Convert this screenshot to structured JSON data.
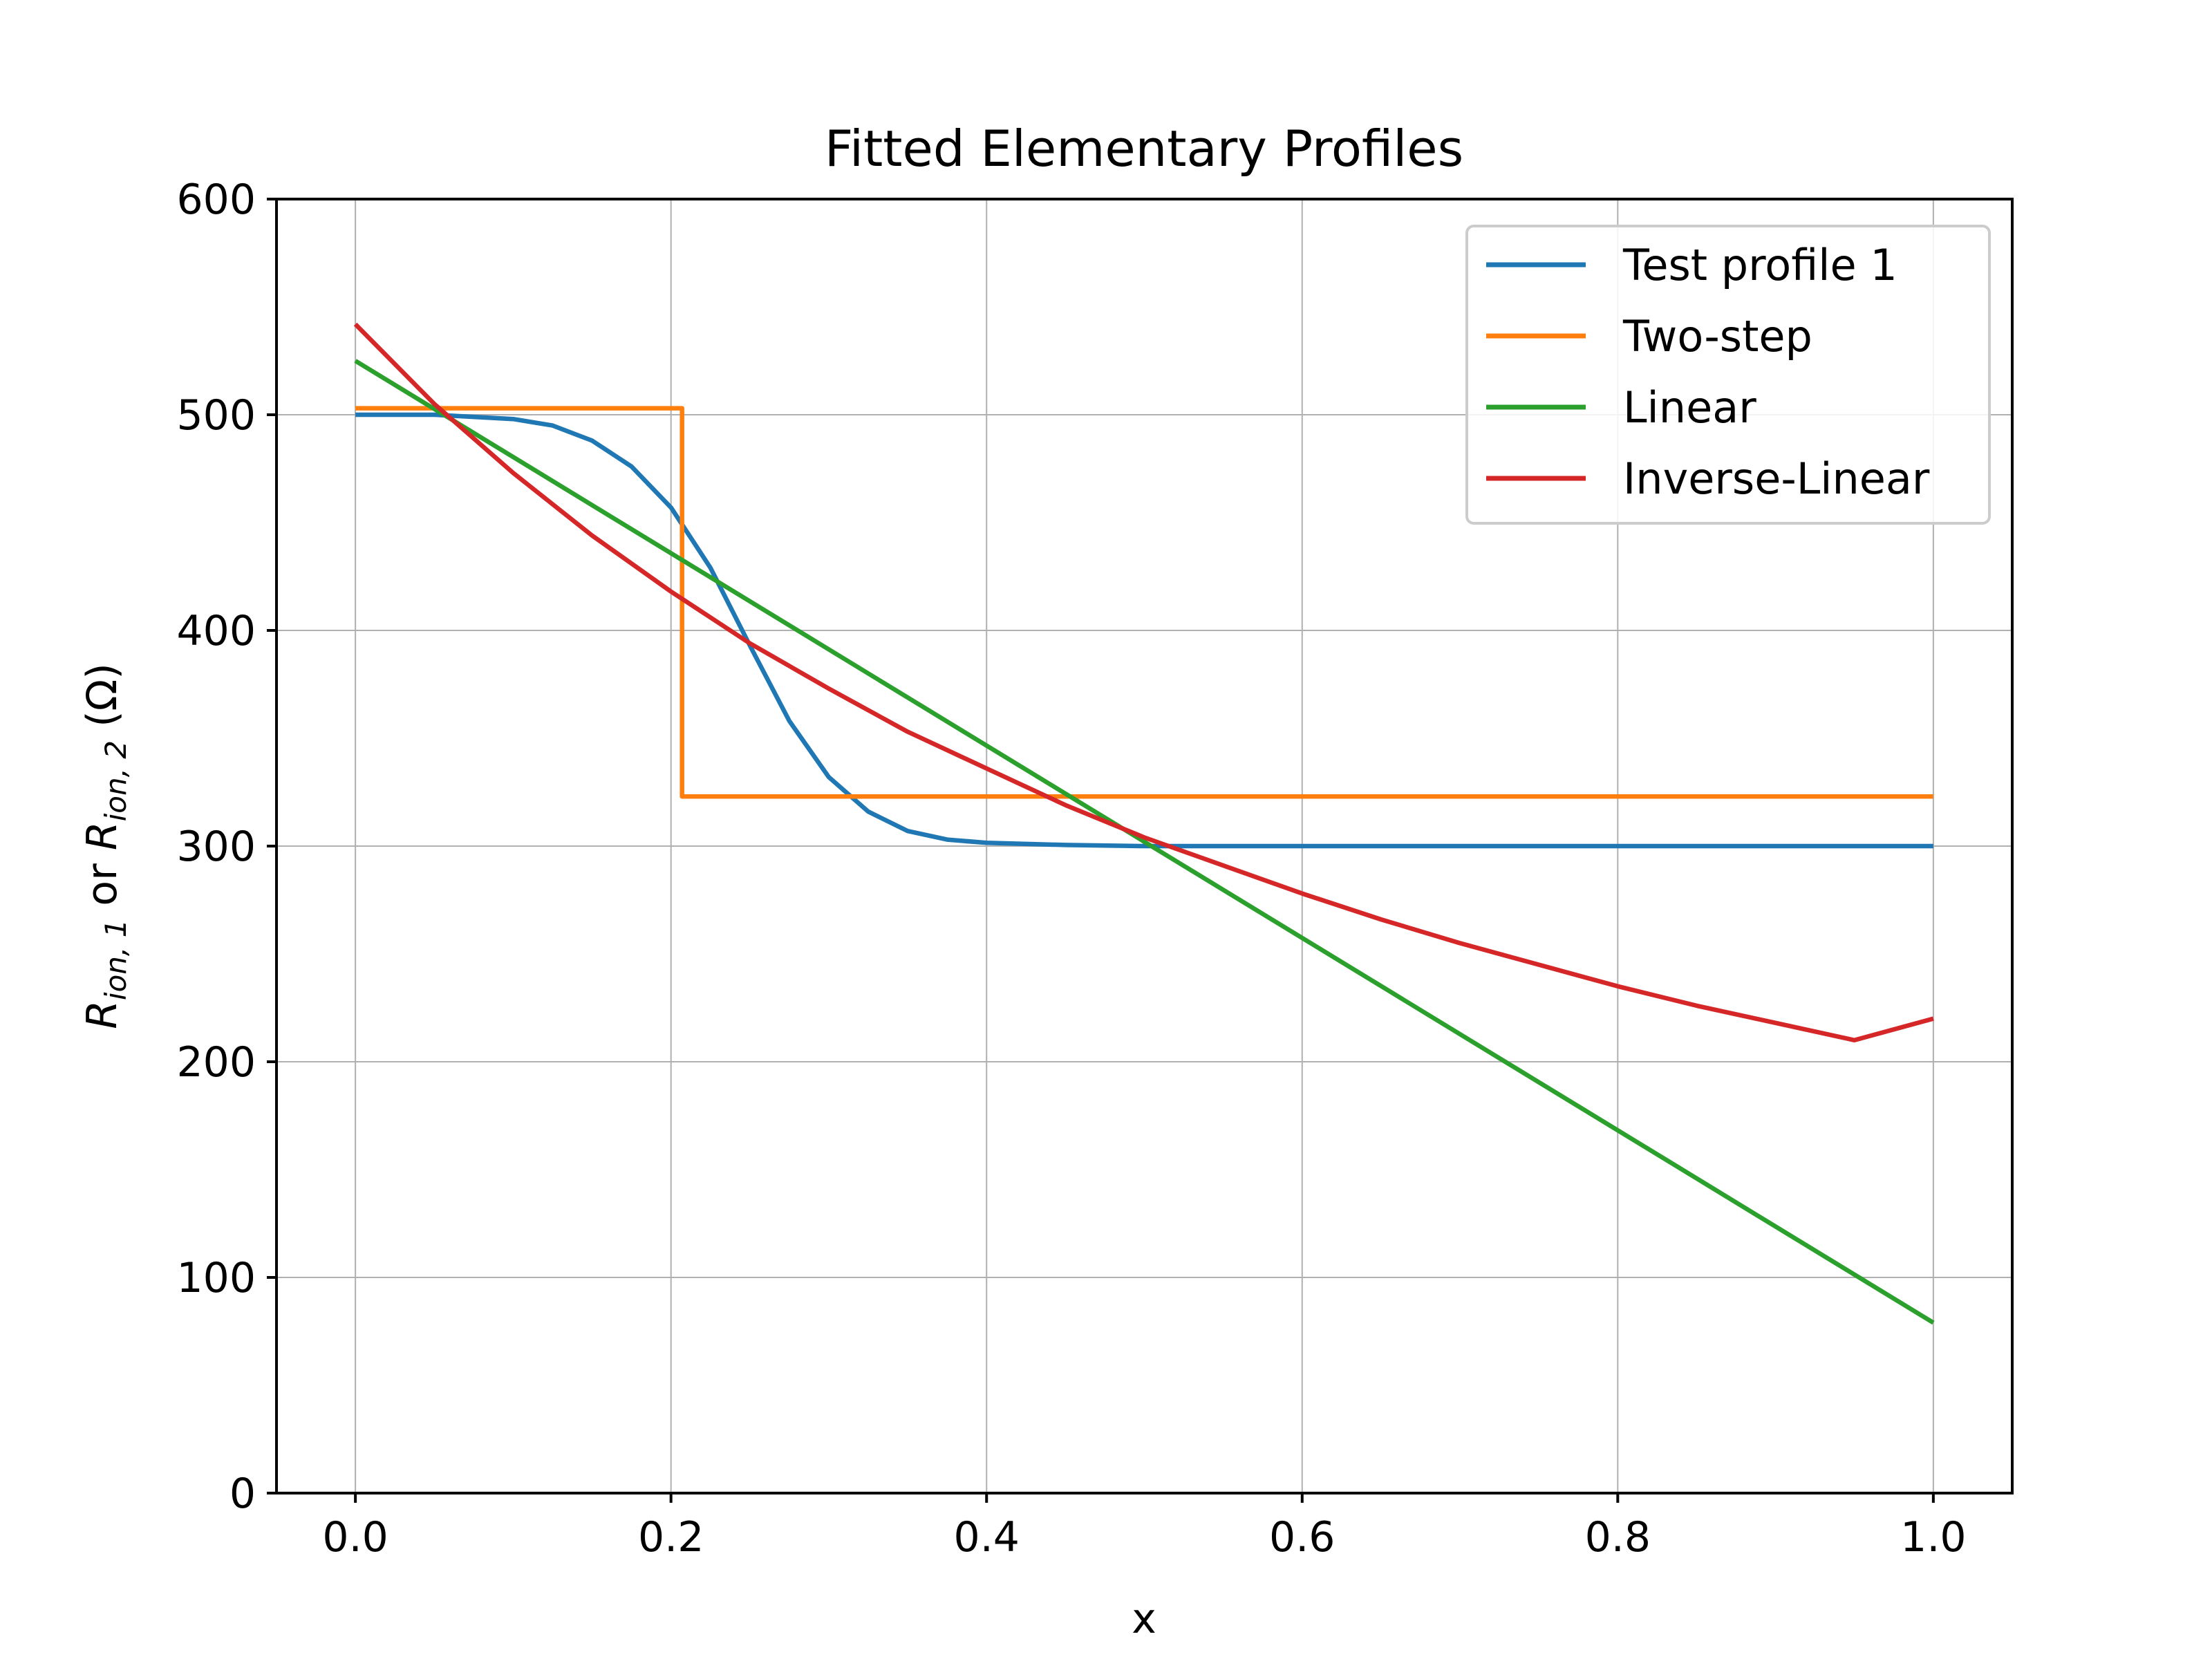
{
  "chart_data": {
    "type": "line",
    "title": "Fitted Elementary Profiles",
    "xlabel": "x",
    "ylabel": {
      "prefix": "R",
      "sub1": "ion, 1",
      "mid": " or ",
      "prefix2": "R",
      "sub2": "ion, 2",
      "suffix": " (Ω)"
    },
    "xlim": [
      -0.05,
      1.05
    ],
    "ylim": [
      0,
      600
    ],
    "xticks": [
      0.0,
      0.2,
      0.4,
      0.6,
      0.8,
      1.0
    ],
    "xtick_labels": [
      "0.0",
      "0.2",
      "0.4",
      "0.6",
      "0.8",
      "1.0"
    ],
    "yticks": [
      0,
      100,
      200,
      300,
      400,
      500,
      600
    ],
    "ytick_labels": [
      "0",
      "100",
      "200",
      "300",
      "400",
      "500",
      "600"
    ],
    "grid": true,
    "legend_position": "top-right",
    "series": [
      {
        "name": "Test profile 1",
        "color": "#1f77b4",
        "x": [
          0.0,
          0.05,
          0.1,
          0.125,
          0.15,
          0.175,
          0.2,
          0.225,
          0.25,
          0.275,
          0.3,
          0.325,
          0.35,
          0.375,
          0.4,
          0.45,
          0.5,
          0.6,
          0.7,
          0.8,
          0.9,
          1.0
        ],
        "y": [
          500,
          500,
          498,
          495,
          488,
          476,
          457,
          429,
          393,
          358,
          332,
          316,
          307,
          303,
          301.5,
          300.5,
          300,
          300,
          300,
          300,
          300,
          300
        ]
      },
      {
        "name": "Two-step",
        "color": "#ff7f0e",
        "x": [
          0.0,
          0.207,
          0.207,
          1.0
        ],
        "y": [
          503,
          503,
          323,
          323
        ]
      },
      {
        "name": "Linear",
        "color": "#2ca02c",
        "x": [
          0.0,
          1.0
        ],
        "y": [
          525,
          79
        ]
      },
      {
        "name": "Inverse-Linear",
        "color": "#d62728",
        "x": [
          0.0,
          0.05,
          0.1,
          0.15,
          0.2,
          0.25,
          0.3,
          0.35,
          0.4,
          0.45,
          0.5,
          0.55,
          0.6,
          0.65,
          0.7,
          0.75,
          0.8,
          0.85,
          0.9,
          0.95,
          1.0
        ],
        "y": [
          542,
          505,
          473,
          444,
          418,
          394,
          373,
          353,
          336,
          319,
          304,
          291,
          278,
          266,
          255,
          245,
          235,
          226,
          218,
          210,
          220
        ]
      }
    ]
  }
}
